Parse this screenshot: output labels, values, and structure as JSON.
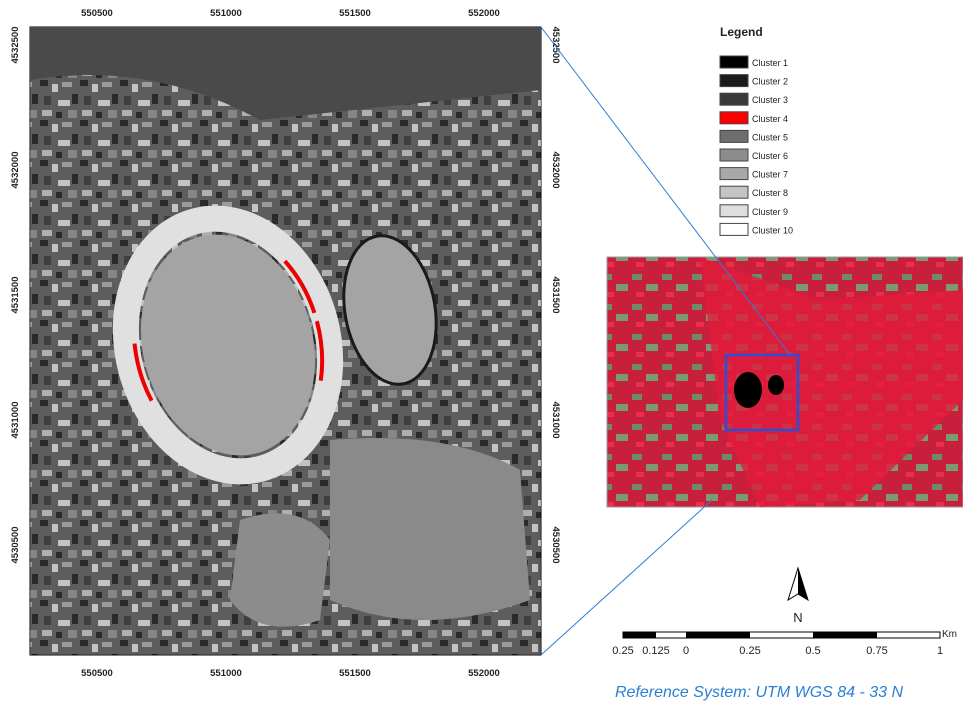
{
  "map": {
    "x_ticks": [
      550500,
      551000,
      551500,
      552000
    ],
    "y_ticks": [
      4532500,
      4532000,
      4531500,
      4531000,
      4530500
    ]
  },
  "legend": {
    "title": "Legend",
    "items": [
      {
        "label": "Cluster 1",
        "color": "#000000"
      },
      {
        "label": "Cluster 2",
        "color": "#1c1c1c"
      },
      {
        "label": "Cluster 3",
        "color": "#3a3a3a"
      },
      {
        "label": "Cluster 4",
        "color": "#ff0000"
      },
      {
        "label": "Cluster 5",
        "color": "#6e6e6e"
      },
      {
        "label": "Cluster 6",
        "color": "#8c8c8c"
      },
      {
        "label": "Cluster 7",
        "color": "#a8a8a8"
      },
      {
        "label": "Cluster 8",
        "color": "#c4c4c4"
      },
      {
        "label": "Cluster 9",
        "color": "#dedede"
      },
      {
        "label": "Cluster 10",
        "color": "#ffffff"
      }
    ]
  },
  "north_arrow": {
    "label": "N"
  },
  "scale_bar": {
    "labels": [
      "0.25",
      "0.125",
      "0",
      "0.25",
      "0.5",
      "0.75",
      "1"
    ],
    "unit": "Km"
  },
  "reference_system": "Reference System: UTM WGS 84 - 33 N"
}
